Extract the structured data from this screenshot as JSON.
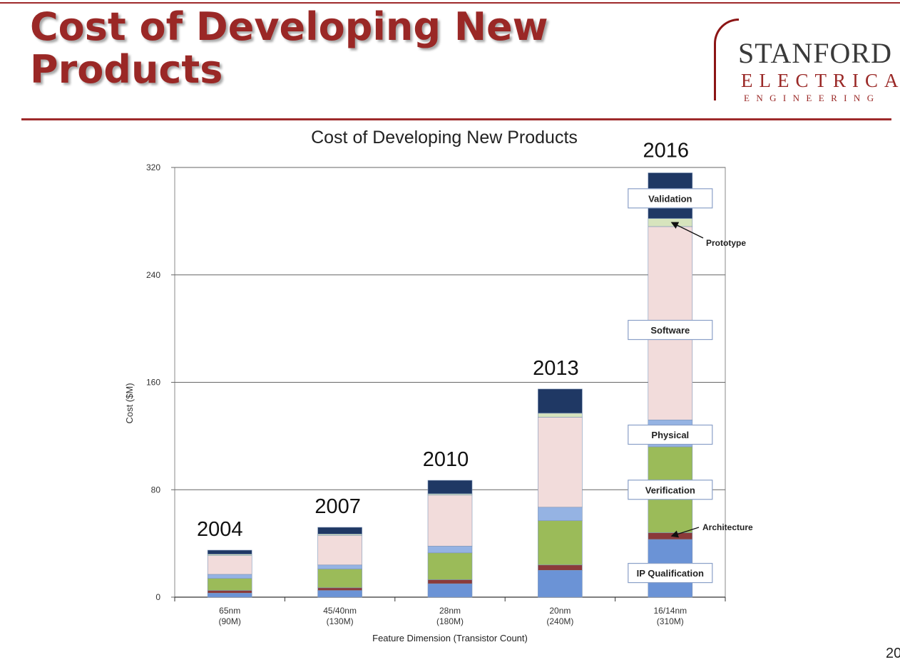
{
  "slide": {
    "title": "Cost of Developing New Products",
    "page_number": "20"
  },
  "logo": {
    "line1": "STANFORD",
    "line2": "ELECTRICAL",
    "line3": "ENGINEERING",
    "color": "#8c1515"
  },
  "chart_data": {
    "type": "bar",
    "stacked": true,
    "title": "Cost of Developing New Products",
    "xlabel": "Feature Dimension (Transistor Count)",
    "ylabel": "Cost ($M)",
    "ylim": [
      0,
      320
    ],
    "yticks": [
      0,
      80,
      160,
      240,
      320
    ],
    "grid": true,
    "categories": [
      {
        "node": "65nm",
        "count": "(90M)",
        "year": "2004"
      },
      {
        "node": "45/40nm",
        "count": "(130M)",
        "year": "2007"
      },
      {
        "node": "28nm",
        "count": "(180M)",
        "year": "2010"
      },
      {
        "node": "20nm",
        "count": "(240M)",
        "year": "2013"
      },
      {
        "node": "16/14nm",
        "count": "(310M)",
        "year": "2016"
      }
    ],
    "series": [
      {
        "name": "IP Qualification",
        "color": "#6b93d6",
        "values": [
          3,
          5,
          10,
          20,
          43
        ]
      },
      {
        "name": "Architecture",
        "color": "#8b3a3a",
        "values": [
          2,
          2,
          3,
          4,
          5
        ]
      },
      {
        "name": "Verification",
        "color": "#9bbb59",
        "values": [
          9,
          14,
          20,
          33,
          64
        ]
      },
      {
        "name": "Physical",
        "color": "#95b3e3",
        "values": [
          3,
          3,
          5,
          10,
          20
        ]
      },
      {
        "name": "Software",
        "color": "#f2dcdb",
        "values": [
          14,
          22,
          38,
          67,
          144
        ]
      },
      {
        "name": "Prototype",
        "color": "#d7e4bd",
        "values": [
          1,
          1,
          1,
          3,
          6
        ]
      },
      {
        "name": "Validation",
        "color": "#1f3864",
        "values": [
          3,
          5,
          10,
          18,
          34
        ]
      }
    ],
    "annotations": {
      "boxed": [
        "Validation",
        "Software",
        "Physical",
        "Verification",
        "IP Qualification"
      ],
      "arrowed": [
        "Prototype",
        "Architecture"
      ]
    }
  }
}
